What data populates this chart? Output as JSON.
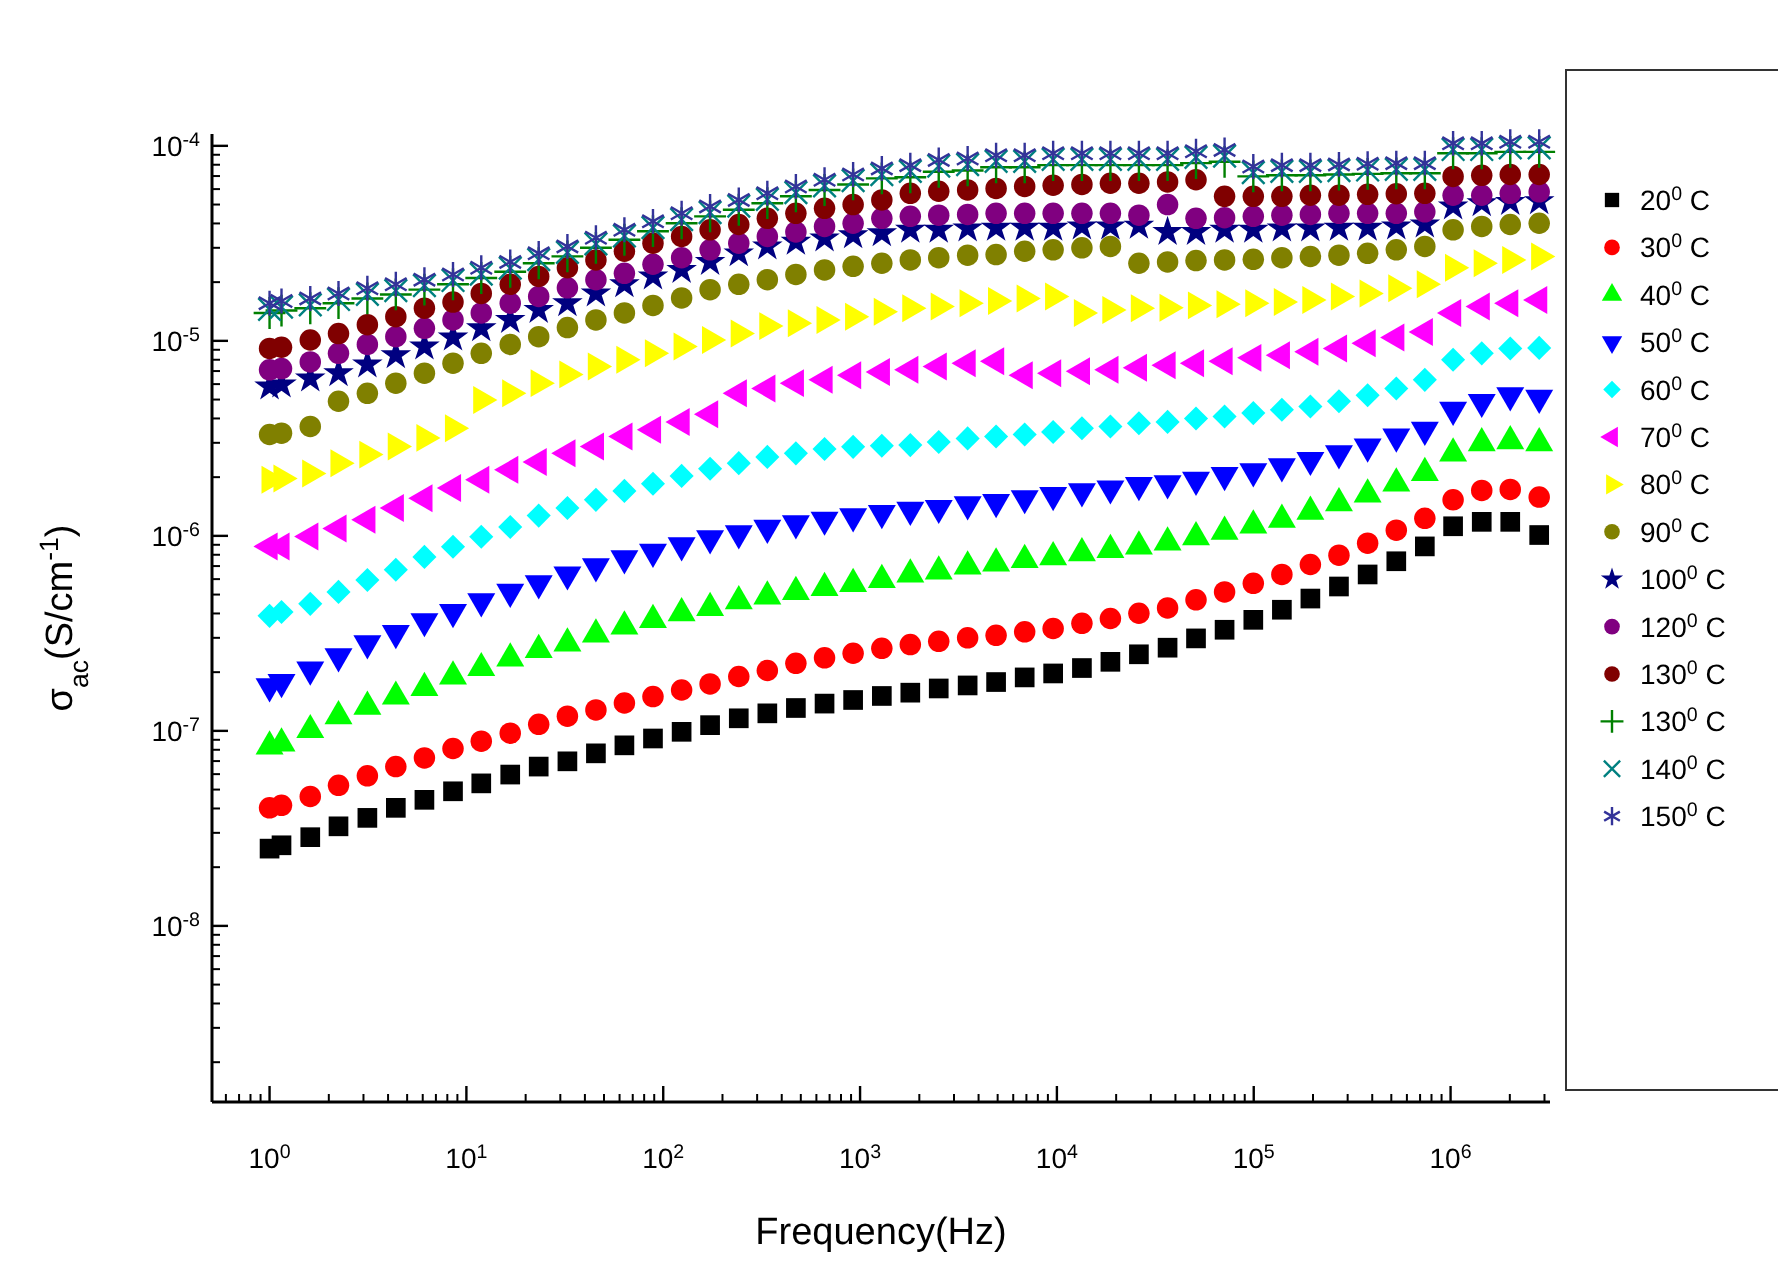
{
  "chart_data": {
    "type": "scatter",
    "xlabel": "Frequency(Hz)",
    "ylabel": "σ$_{ac}$(S/cm$^{-1}$)",
    "log": "xy",
    "grid": false,
    "legend": "right",
    "xlim": [
      0.51,
      3200000
    ],
    "ylim": [
      1.25e-09,
      0.000115
    ],
    "xticks": [
      {
        "value": 1,
        "label": "10$^{0}$"
      },
      {
        "value": 10,
        "label": "10$^{1}$"
      },
      {
        "value": 100,
        "label": "10$^{2}$"
      },
      {
        "value": 1000,
        "label": "10$^{3}$"
      },
      {
        "value": 10000,
        "label": "10$^{4}$"
      },
      {
        "value": 100000,
        "label": "10$^{5}$"
      },
      {
        "value": 1000000,
        "label": "10$^{6}$"
      }
    ],
    "yticks": [
      {
        "value": 1e-08,
        "label": "10$^{-8}$"
      },
      {
        "value": 1e-07,
        "label": "10$^{-7}$"
      },
      {
        "value": 1e-06,
        "label": "10$^{-6}$"
      },
      {
        "value": 1e-05,
        "label": "10$^{-5}$"
      },
      {
        "value": 0.0001,
        "label": "10$^{-4}$"
      }
    ],
    "x": [
      1,
      1.15,
      1.61,
      2.24,
      3.14,
      4.38,
      6.12,
      8.55,
      11.9,
      16.7,
      23.3,
      32.6,
      45.5,
      63.5,
      88.7,
      124,
      173,
      242,
      338,
      472,
      660,
      922,
      1290,
      1800,
      2510,
      3520,
      4910,
      6860,
      9570,
      13400,
      18700,
      26100,
      36500,
      50900,
      71100,
      99500,
      139000,
      194000,
      271000,
      379000,
      530000,
      740000,
      1030000,
      1440000,
      2010000,
      2820000
    ],
    "series": [
      {
        "name": "20$^{0}$ C",
        "color": "#000000",
        "marker": "square",
        "values": [
          2.49e-08,
          2.59e-08,
          2.85e-08,
          3.24e-08,
          3.58e-08,
          4.03e-08,
          4.43e-08,
          4.9e-08,
          5.38e-08,
          5.97e-08,
          6.56e-08,
          6.98e-08,
          7.67e-08,
          8.43e-08,
          9.14e-08,
          9.89e-08,
          1.07e-07,
          1.16e-07,
          1.23e-07,
          1.31e-07,
          1.38e-07,
          1.44e-07,
          1.51e-07,
          1.57e-07,
          1.65e-07,
          1.71e-07,
          1.78e-07,
          1.88e-07,
          1.97e-07,
          2.1e-07,
          2.26e-07,
          2.47e-07,
          2.67e-07,
          2.98e-07,
          3.3e-07,
          3.71e-07,
          4.18e-07,
          4.77e-07,
          5.5e-07,
          6.34e-07,
          7.41e-07,
          8.83e-07,
          1.12e-06,
          1.18e-06,
          1.18e-06,
          1.01e-06
        ]
      },
      {
        "name": "30$^{0}$ C",
        "color": "#ff0000",
        "marker": "circle",
        "values": [
          4.03e-08,
          4.15e-08,
          4.61e-08,
          5.26e-08,
          5.88e-08,
          6.56e-08,
          7.27e-08,
          8.12e-08,
          8.85e-08,
          9.73e-08,
          1.08e-07,
          1.19e-07,
          1.28e-07,
          1.39e-07,
          1.5e-07,
          1.62e-07,
          1.74e-07,
          1.9e-07,
          2.04e-07,
          2.22e-07,
          2.37e-07,
          2.5e-07,
          2.65e-07,
          2.77e-07,
          2.88e-07,
          3e-07,
          3.09e-07,
          3.22e-07,
          3.35e-07,
          3.56e-07,
          3.77e-07,
          4.01e-07,
          4.27e-07,
          4.7e-07,
          5.16e-07,
          5.71e-07,
          6.34e-07,
          7.13e-07,
          7.96e-07,
          9.17e-07,
          1.07e-06,
          1.23e-06,
          1.53e-06,
          1.71e-06,
          1.73e-06,
          1.58e-06
        ]
      },
      {
        "name": "40$^{0}$ C",
        "color": "#00ff00",
        "marker": "triangle",
        "values": [
          8.32e-08,
          8.63e-08,
          1.01e-07,
          1.19e-07,
          1.33e-07,
          1.5e-07,
          1.66e-07,
          1.9e-07,
          2.1e-07,
          2.35e-07,
          2.6e-07,
          2.81e-07,
          3.12e-07,
          3.43e-07,
          3.71e-07,
          4.01e-07,
          4.27e-07,
          4.62e-07,
          4.89e-07,
          5.16e-07,
          5.41e-07,
          5.67e-07,
          5.94e-07,
          6.34e-07,
          6.58e-07,
          6.97e-07,
          7.23e-07,
          7.53e-07,
          7.77e-07,
          8.15e-07,
          8.48e-07,
          8.83e-07,
          9.25e-07,
          9.84e-07,
          1.05e-06,
          1.13e-06,
          1.21e-06,
          1.33e-06,
          1.47e-06,
          1.63e-06,
          1.86e-06,
          2.1e-06,
          2.65e-06,
          2.99e-06,
          3.06e-06,
          2.99e-06
        ]
      },
      {
        "name": "50$^{0}$ C",
        "color": "#0000ff",
        "marker": "triangle-down",
        "values": [
          1.69e-07,
          1.78e-07,
          2.06e-07,
          2.41e-07,
          2.81e-07,
          3.17e-07,
          3.65e-07,
          4.07e-07,
          4.62e-07,
          5.16e-07,
          5.71e-07,
          6.34e-07,
          6.97e-07,
          7.66e-07,
          8.28e-07,
          8.95e-07,
          9.7e-07,
          1.03e-06,
          1.1e-06,
          1.16e-06,
          1.21e-06,
          1.26e-06,
          1.31e-06,
          1.36e-06,
          1.39e-06,
          1.45e-06,
          1.49e-06,
          1.56e-06,
          1.62e-06,
          1.69e-06,
          1.75e-06,
          1.82e-06,
          1.86e-06,
          1.94e-06,
          2.05e-06,
          2.14e-06,
          2.27e-06,
          2.45e-06,
          2.65e-06,
          2.87e-06,
          3.23e-06,
          3.5e-06,
          4.43e-06,
          4.86e-06,
          5.26e-06,
          5.1e-06
        ]
      },
      {
        "name": "60$^{0}$ C",
        "color": "#00ffff",
        "marker": "diamond",
        "values": [
          3.89e-07,
          4.07e-07,
          4.48e-07,
          5.16e-07,
          5.94e-07,
          6.7e-07,
          7.8e-07,
          8.79e-07,
          9.89e-07,
          1.11e-06,
          1.27e-06,
          1.39e-06,
          1.53e-06,
          1.7e-06,
          1.85e-06,
          2.03e-06,
          2.21e-06,
          2.36e-06,
          2.54e-06,
          2.65e-06,
          2.79e-06,
          2.86e-06,
          2.9e-06,
          2.92e-06,
          3.03e-06,
          3.16e-06,
          3.23e-06,
          3.31e-06,
          3.41e-06,
          3.56e-06,
          3.64e-06,
          3.78e-06,
          3.84e-06,
          4e-06,
          4.09e-06,
          4.26e-06,
          4.43e-06,
          4.61e-06,
          4.9e-06,
          5.26e-06,
          5.7e-06,
          6.31e-06,
          8e-06,
          8.63e-06,
          9.14e-06,
          9.2e-06
        ]
      },
      {
        "name": "70$^{0}$ C",
        "color": "#ff00ff",
        "marker": "triangle-left",
        "values": [
          8.83e-07,
          8.83e-07,
          9.93e-07,
          1.09e-06,
          1.21e-06,
          1.39e-06,
          1.56e-06,
          1.76e-06,
          1.94e-06,
          2.18e-06,
          2.39e-06,
          2.65e-06,
          2.87e-06,
          3.23e-06,
          3.5e-06,
          3.84e-06,
          4.2e-06,
          5.38e-06,
          5.7e-06,
          6.07e-06,
          6.31e-06,
          6.67e-06,
          6.93e-06,
          7.1e-06,
          7.39e-06,
          7.68e-06,
          7.86e-06,
          6.67e-06,
          6.83e-06,
          6.98e-06,
          7.1e-06,
          7.27e-06,
          7.5e-06,
          7.68e-06,
          7.86e-06,
          8.18e-06,
          8.44e-06,
          8.79e-06,
          9.14e-06,
          9.72e-06,
          1.04e-05,
          1.11e-05,
          1.39e-05,
          1.5e-05,
          1.56e-05,
          1.62e-05
        ]
      },
      {
        "name": "80$^{0}$ C",
        "color": "#ffff00",
        "marker": "triangle-right",
        "values": [
          1.94e-06,
          1.97e-06,
          2.09e-06,
          2.36e-06,
          2.61e-06,
          2.87e-06,
          3.18e-06,
          3.56e-06,
          4.98e-06,
          5.38e-06,
          6.07e-06,
          6.73e-06,
          7.39e-06,
          8e-06,
          8.63e-06,
          9.35e-06,
          1.01e-05,
          1.09e-05,
          1.19e-05,
          1.23e-05,
          1.28e-05,
          1.33e-05,
          1.41e-05,
          1.47e-05,
          1.5e-05,
          1.56e-05,
          1.6e-05,
          1.65e-05,
          1.69e-05,
          1.39e-05,
          1.44e-05,
          1.47e-05,
          1.48e-05,
          1.52e-05,
          1.54e-05,
          1.56e-05,
          1.58e-05,
          1.62e-05,
          1.69e-05,
          1.75e-05,
          1.86e-05,
          1.95e-05,
          2.37e-05,
          2.5e-05,
          2.6e-05,
          2.71e-05
        ]
      },
      {
        "name": "90$^{0}$ C",
        "color": "#808000",
        "values": [
          3.31e-06,
          3.36e-06,
          3.64e-06,
          4.9e-06,
          5.38e-06,
          6.07e-06,
          6.83e-06,
          7.68e-06,
          8.63e-06,
          9.59e-06,
          1.05e-05,
          1.17e-05,
          1.28e-05,
          1.39e-05,
          1.52e-05,
          1.66e-05,
          1.83e-05,
          1.95e-05,
          2.06e-05,
          2.19e-05,
          2.31e-05,
          2.41e-05,
          2.5e-05,
          2.6e-05,
          2.67e-05,
          2.75e-05,
          2.77e-05,
          2.88e-05,
          2.93e-05,
          3e-05,
          3.05e-05,
          2.5e-05,
          2.54e-05,
          2.58e-05,
          2.6e-05,
          2.62e-05,
          2.67e-05,
          2.71e-05,
          2.75e-05,
          2.81e-05,
          2.93e-05,
          3.05e-05,
          3.71e-05,
          3.86e-05,
          3.95e-05,
          4.01e-05
        ]
      },
      {
        "name": "100$^{0}$ C",
        "color": "#000080",
        "marker": "star",
        "values": [
          5.83e-06,
          5.97e-06,
          6.41e-06,
          6.83e-06,
          7.57e-06,
          8.44e-06,
          9.35e-06,
          1.04e-05,
          1.16e-05,
          1.28e-05,
          1.44e-05,
          1.56e-05,
          1.75e-05,
          1.95e-05,
          2.14e-05,
          2.31e-05,
          2.54e-05,
          2.81e-05,
          3.05e-05,
          3.22e-05,
          3.35e-05,
          3.48e-05,
          3.56e-05,
          3.71e-05,
          3.71e-05,
          3.77e-05,
          3.8e-05,
          3.8e-05,
          3.8e-05,
          3.86e-05,
          3.86e-05,
          3.89e-05,
          3.62e-05,
          3.62e-05,
          3.71e-05,
          3.71e-05,
          3.77e-05,
          3.77e-05,
          3.8e-05,
          3.8e-05,
          3.86e-05,
          3.95e-05,
          4.89e-05,
          5.08e-05,
          5.16e-05,
          5.2e-05
        ]
      },
      {
        "name": "120$^{0}$ C",
        "color": "#800080",
        "values": [
          7.1e-06,
          7.21e-06,
          7.8e-06,
          8.63e-06,
          9.59e-06,
          1.05e-05,
          1.16e-05,
          1.28e-05,
          1.39e-05,
          1.56e-05,
          1.69e-05,
          1.87e-05,
          2.06e-05,
          2.22e-05,
          2.47e-05,
          2.67e-05,
          2.93e-05,
          3.17e-05,
          3.43e-05,
          3.62e-05,
          3.86e-05,
          4.01e-05,
          4.25e-05,
          4.35e-05,
          4.41e-05,
          4.45e-05,
          4.51e-05,
          4.51e-05,
          4.51e-05,
          4.51e-05,
          4.51e-05,
          4.41e-05,
          5e-05,
          4.25e-05,
          4.28e-05,
          4.35e-05,
          4.41e-05,
          4.45e-05,
          4.51e-05,
          4.51e-05,
          4.51e-05,
          4.59e-05,
          5.58e-05,
          5.58e-05,
          5.71e-05,
          5.81e-05
        ]
      },
      {
        "name": "130$^{0}$ C",
        "color": "#800000",
        "marker": "circle",
        "values": [
          9.14e-06,
          9.27e-06,
          1.01e-05,
          1.09e-05,
          1.21e-05,
          1.33e-05,
          1.47e-05,
          1.58e-05,
          1.75e-05,
          1.95e-05,
          2.14e-05,
          2.37e-05,
          2.6e-05,
          2.88e-05,
          3.17e-05,
          3.43e-05,
          3.71e-05,
          3.95e-05,
          4.25e-05,
          4.51e-05,
          4.78e-05,
          5e-05,
          5.28e-05,
          5.71e-05,
          5.85e-05,
          5.94e-05,
          6.05e-05,
          6.19e-05,
          6.28e-05,
          6.34e-05,
          6.43e-05,
          6.43e-05,
          6.53e-05,
          6.7e-05,
          5.51e-05,
          5.51e-05,
          5.51e-05,
          5.58e-05,
          5.58e-05,
          5.64e-05,
          5.68e-05,
          5.71e-05,
          6.97e-05,
          7.06e-05,
          7.13e-05,
          7.13e-05
        ]
      },
      {
        "name": "130$^{0}$ C",
        "color": "#008000",
        "marker": "plus",
        "values": [
          1.39e-05,
          1.43e-05,
          1.47e-05,
          1.56e-05,
          1.65e-05,
          1.73e-05,
          1.83e-05,
          1.95e-05,
          2.1e-05,
          2.26e-05,
          2.5e-05,
          2.71e-05,
          3e-05,
          3.3e-05,
          3.65e-05,
          4.01e-05,
          4.35e-05,
          4.7e-05,
          5.08e-05,
          5.51e-05,
          5.94e-05,
          6.34e-05,
          6.81e-05,
          6.9e-05,
          7.36e-05,
          7.48e-05,
          7.77e-05,
          7.77e-05,
          7.96e-05,
          7.96e-05,
          7.96e-05,
          7.96e-05,
          7.96e-05,
          8.15e-05,
          8.28e-05,
          6.97e-05,
          7.06e-05,
          7.06e-05,
          7.13e-05,
          7.18e-05,
          7.23e-05,
          7.23e-05,
          9.16e-05,
          9.16e-05,
          9.31e-05,
          9.31e-05
        ]
      },
      {
        "name": "140$^{0}$ C",
        "color": "#008080",
        "marker": "x",
        "values": [
          1.45e-05,
          1.49e-05,
          1.53e-05,
          1.63e-05,
          1.73e-05,
          1.81e-05,
          1.92e-05,
          2.04e-05,
          2.2e-05,
          2.36e-05,
          2.61e-05,
          2.84e-05,
          3.14e-05,
          3.45e-05,
          3.81e-05,
          4.19e-05,
          4.55e-05,
          4.91e-05,
          5.31e-05,
          5.76e-05,
          6.23e-05,
          6.63e-05,
          7.12e-05,
          7.4e-05,
          7.88e-05,
          8.01e-05,
          8.32e-05,
          8.32e-05,
          8.52e-05,
          8.52e-05,
          8.52e-05,
          8.52e-05,
          8.52e-05,
          8.72e-05,
          8.86e-05,
          7.29e-05,
          7.4e-05,
          7.4e-05,
          7.47e-05,
          7.52e-05,
          7.58e-05,
          7.58e-05,
          9.58e-05,
          9.58e-05,
          9.77e-05,
          9.77e-05
        ]
      },
      {
        "name": "150$^{0}$ C",
        "color": "#333399",
        "marker": "cross",
        "values": [
          1.56e-05,
          1.6e-05,
          1.65e-05,
          1.75e-05,
          1.86e-05,
          1.95e-05,
          2.06e-05,
          2.19e-05,
          2.37e-05,
          2.54e-05,
          2.81e-05,
          3.05e-05,
          3.38e-05,
          3.71e-05,
          4.1e-05,
          4.51e-05,
          4.89e-05,
          5.28e-05,
          5.71e-05,
          6.19e-05,
          6.7e-05,
          7.13e-05,
          7.66e-05,
          7.96e-05,
          8.47e-05,
          8.61e-05,
          8.95e-05,
          8.95e-05,
          9.16e-05,
          9.16e-05,
          9.16e-05,
          9.16e-05,
          9.16e-05,
          9.38e-05,
          9.53e-05,
          7.84e-05,
          7.96e-05,
          7.96e-05,
          8.03e-05,
          8.09e-05,
          8.15e-05,
          8.15e-05,
          0.000103,
          0.000103,
          0.000105,
          0.000105
        ]
      }
    ]
  }
}
